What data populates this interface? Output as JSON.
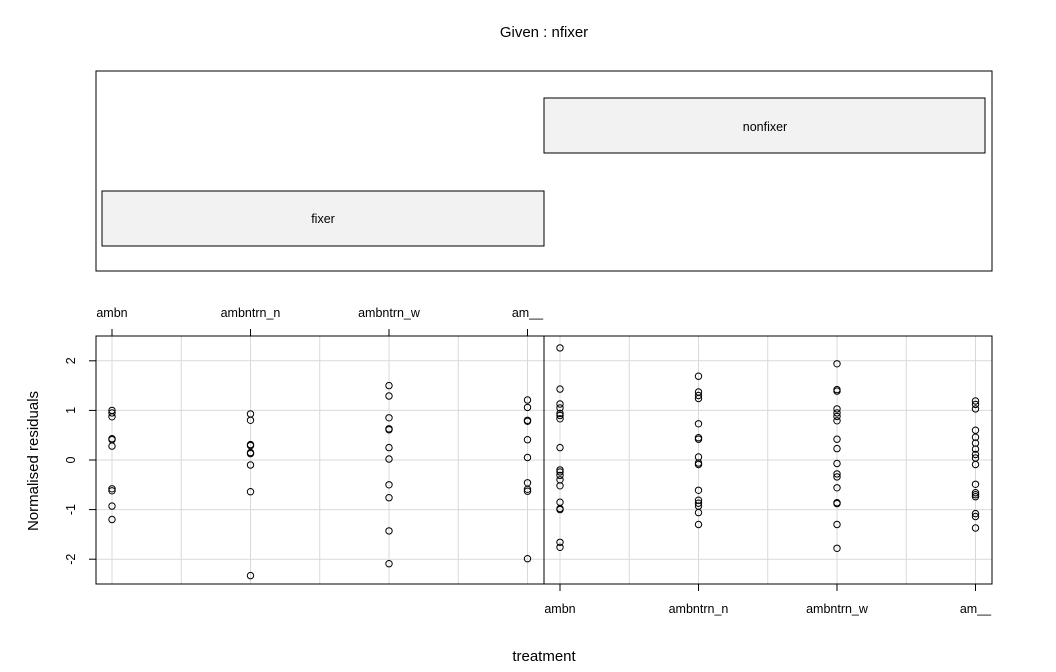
{
  "chart_data": {
    "type": "scatter",
    "title": "Given : nfixer",
    "xlabel": "treatment",
    "ylabel": "Normalised residuals",
    "ylim": [
      -2.5,
      2.5
    ],
    "yticks": [
      -2,
      -1,
      0,
      1,
      2
    ],
    "grid": true,
    "given_levels": [
      "fixer",
      "nonfixer"
    ],
    "categories": [
      "ambn",
      "ambntrn_n",
      "ambntrn_w",
      "am__"
    ],
    "panels": [
      {
        "given": "fixer",
        "points": [
          {
            "x": "ambn",
            "y": [
              1.0,
              0.95,
              0.87,
              0.43,
              0.41,
              0.28,
              -0.58,
              -0.62,
              -0.93,
              -1.2
            ]
          },
          {
            "x": "ambntrn_n",
            "y": [
              0.93,
              0.8,
              0.31,
              0.29,
              0.15,
              0.13,
              -0.1,
              -0.64,
              -2.33
            ]
          },
          {
            "x": "ambntrn_w",
            "y": [
              1.5,
              1.29,
              0.85,
              0.63,
              0.61,
              0.25,
              0.02,
              -0.5,
              -0.76,
              -1.43,
              -2.09
            ]
          },
          {
            "x": "am__",
            "y": [
              1.21,
              1.06,
              0.8,
              0.78,
              0.41,
              0.05,
              -0.46,
              -0.59,
              -0.63,
              -1.99
            ]
          }
        ]
      },
      {
        "given": "nonfixer",
        "points": [
          {
            "x": "ambn",
            "y": [
              2.26,
              1.43,
              1.13,
              1.05,
              0.94,
              0.9,
              0.83,
              0.25,
              -0.2,
              -0.24,
              -0.31,
              -0.4,
              -0.52,
              -0.85,
              -0.98,
              -1.0,
              -1.66,
              -1.76
            ]
          },
          {
            "x": "ambntrn_n",
            "y": [
              1.69,
              1.37,
              1.3,
              1.24,
              0.73,
              0.45,
              0.42,
              0.06,
              -0.06,
              -0.09,
              -0.61,
              -0.81,
              -0.87,
              -0.93,
              -1.06,
              -1.3
            ]
          },
          {
            "x": "ambntrn_w",
            "y": [
              1.94,
              1.42,
              1.39,
              1.03,
              0.95,
              0.88,
              0.79,
              0.42,
              0.23,
              -0.07,
              -0.28,
              -0.34,
              -0.56,
              -0.86,
              -0.88,
              -1.3,
              -1.78
            ]
          },
          {
            "x": "am__",
            "y": [
              1.19,
              1.12,
              1.03,
              0.6,
              0.46,
              0.34,
              0.22,
              0.11,
              0.04,
              -0.09,
              -0.49,
              -0.66,
              -0.7,
              -0.74,
              -1.08,
              -1.14,
              -1.37
            ]
          }
        ]
      }
    ]
  }
}
